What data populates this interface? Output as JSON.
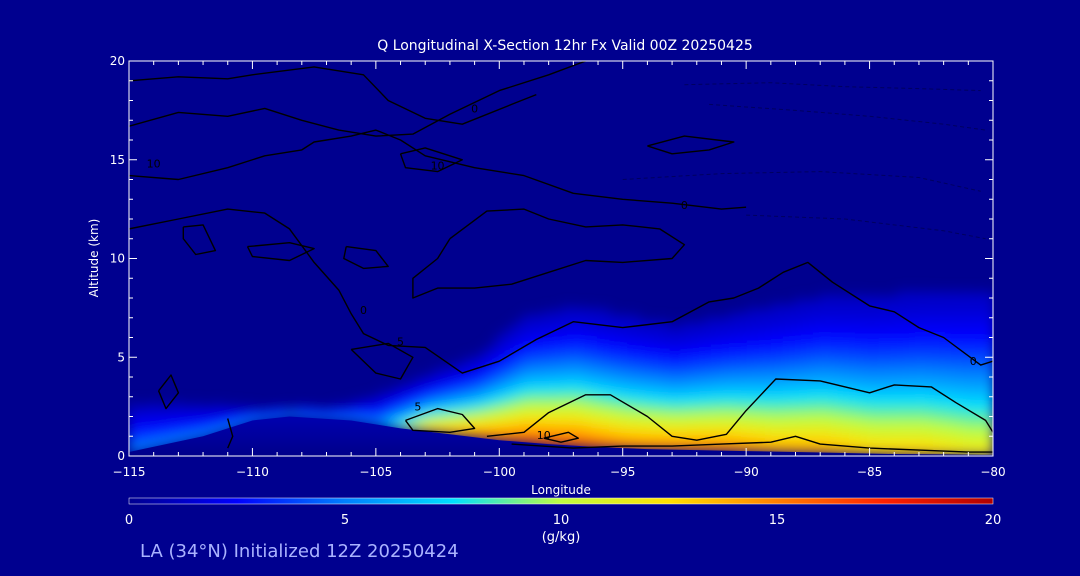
{
  "chart_data": {
    "type": "heatmap",
    "title": "Q Longitudinal X-Section 12hr  Fx Valid 00Z 20250425",
    "xlabel": "Longitude",
    "ylabel": "Altitude (km)",
    "xlim": [
      -115,
      -80
    ],
    "ylim": [
      0,
      20
    ],
    "x_ticks": [
      -115,
      -110,
      -105,
      -100,
      -95,
      -90,
      -85,
      -80
    ],
    "y_ticks": [
      0,
      5,
      10,
      15,
      20
    ],
    "colorbar": {
      "label": "(g/kg)",
      "range": [
        0,
        20
      ],
      "ticks": [
        0,
        5,
        10,
        15,
        20
      ],
      "colors": [
        "#00008f",
        "#0000ff",
        "#0080ff",
        "#00e0ff",
        "#c0ff40",
        "#ffe000",
        "#ff8000",
        "#ff2000",
        "#b00000"
      ]
    },
    "terrain": {
      "lon": [
        -115,
        -112,
        -110,
        -108.5,
        -106,
        -104,
        -102,
        -100,
        -98,
        -96,
        -94,
        -92,
        -90,
        -88,
        -86,
        -84,
        -82,
        -80
      ],
      "alt": [
        0.2,
        1.0,
        1.8,
        2.0,
        1.8,
        1.4,
        1.1,
        0.8,
        0.6,
        0.45,
        0.35,
        0.3,
        0.25,
        0.2,
        0.15,
        0.1,
        0.08,
        0.05
      ]
    },
    "moisture_profile": {
      "lon": [
        -115,
        -113,
        -111,
        -109,
        -107,
        -105,
        -103,
        -101,
        -99,
        -97,
        -95,
        -93,
        -91,
        -89,
        -87,
        -85,
        -83,
        -81,
        -80
      ],
      "q_surface": [
        4,
        4,
        4,
        3.5,
        3.5,
        4,
        12,
        14,
        15,
        15,
        14,
        14,
        14,
        13,
        13,
        12,
        12,
        11,
        11
      ],
      "moist_top_km": [
        2.5,
        2.5,
        2.4,
        2.2,
        2.3,
        3,
        4,
        5,
        7,
        7.5,
        7,
        6.5,
        7,
        7.5,
        8,
        8,
        8.2,
        8.3,
        8.3
      ]
    },
    "contour_labels": [
      {
        "text": "10",
        "lon": -114,
        "alt": 14.6
      },
      {
        "text": "10",
        "lon": -102.5,
        "alt": 14.5
      },
      {
        "text": "10",
        "lon": -98.2,
        "alt": 0.85
      },
      {
        "text": "5",
        "lon": -103.3,
        "alt": 2.3
      },
      {
        "text": "5",
        "lon": -104.0,
        "alt": 5.6
      },
      {
        "text": "0",
        "lon": -105.5,
        "alt": 7.2
      },
      {
        "text": "0",
        "lon": -101.0,
        "alt": 17.4
      },
      {
        "text": "0",
        "lon": -92.5,
        "alt": 12.5
      },
      {
        "text": "0",
        "lon": -80.8,
        "alt": 4.6
      }
    ],
    "contours": [
      [
        [
          -115,
          16.7
        ],
        [
          -113,
          17.4
        ],
        [
          -111,
          17.2
        ],
        [
          -109.5,
          17.6
        ],
        [
          -108,
          17.0
        ],
        [
          -106.5,
          16.5
        ],
        [
          -105,
          16.2
        ],
        [
          -103.5,
          16.3
        ],
        [
          -102,
          17.3
        ],
        [
          -100,
          18.5
        ],
        [
          -98,
          19.3
        ],
        [
          -96.5,
          20
        ]
      ],
      [
        [
          -115,
          19.0
        ],
        [
          -113,
          19.2
        ],
        [
          -111,
          19.1
        ],
        [
          -110,
          19.3
        ],
        [
          -107.5,
          19.7
        ],
        [
          -105.5,
          19.3
        ],
        [
          -104.5,
          18.0
        ],
        [
          -103,
          17.1
        ],
        [
          -101.5,
          16.8
        ],
        [
          -99.5,
          17.8
        ],
        [
          -98.5,
          18.3
        ]
      ],
      [
        [
          -115,
          14.2
        ],
        [
          -113,
          14.0
        ],
        [
          -111,
          14.6
        ],
        [
          -109.5,
          15.2
        ],
        [
          -108,
          15.5
        ],
        [
          -107.5,
          15.9
        ],
        [
          -106,
          16.2
        ],
        [
          -105,
          16.5
        ],
        [
          -104,
          16.0
        ],
        [
          -103,
          15.2
        ],
        [
          -101,
          14.6
        ],
        [
          -99,
          14.2
        ],
        [
          -97,
          13.3
        ],
        [
          -95,
          13.0
        ],
        [
          -93,
          12.8
        ],
        [
          -91,
          12.5
        ],
        [
          -90,
          12.6
        ]
      ],
      [
        [
          -115,
          11.5
        ],
        [
          -113,
          12.0
        ],
        [
          -111,
          12.5
        ],
        [
          -109.5,
          12.3
        ],
        [
          -108.5,
          11.5
        ],
        [
          -107.5,
          9.8
        ],
        [
          -106.5,
          8.4
        ],
        [
          -106,
          7.2
        ],
        [
          -105.5,
          6.2
        ],
        [
          -104.5,
          5.6
        ],
        [
          -103,
          5.5
        ],
        [
          -101.5,
          4.2
        ],
        [
          -100,
          4.8
        ],
        [
          -98.5,
          5.9
        ],
        [
          -97,
          6.8
        ],
        [
          -95,
          6.5
        ],
        [
          -93,
          6.8
        ],
        [
          -91.5,
          7.8
        ],
        [
          -90.5,
          8.0
        ],
        [
          -89.5,
          8.5
        ],
        [
          -88.5,
          9.3
        ],
        [
          -87.5,
          9.8
        ],
        [
          -86.5,
          8.8
        ],
        [
          -85,
          7.6
        ],
        [
          -84,
          7.3
        ],
        [
          -83,
          6.5
        ],
        [
          -82,
          6.0
        ],
        [
          -80.5,
          4.6
        ],
        [
          -80,
          4.8
        ]
      ],
      [
        [
          -102,
          11.0
        ],
        [
          -100.5,
          12.4
        ],
        [
          -99,
          12.5
        ],
        [
          -98,
          12.0
        ],
        [
          -96.5,
          11.6
        ],
        [
          -95,
          11.7
        ],
        [
          -93.5,
          11.5
        ],
        [
          -92.5,
          10.7
        ],
        [
          -93,
          10.0
        ],
        [
          -95,
          9.8
        ],
        [
          -96.5,
          9.9
        ],
        [
          -98,
          9.3
        ],
        [
          -99.5,
          8.7
        ],
        [
          -101,
          8.5
        ],
        [
          -102.5,
          8.5
        ],
        [
          -103.5,
          8.0
        ],
        [
          -103.5,
          9.0
        ],
        [
          -102.5,
          10.0
        ],
        [
          -102,
          11.0
        ]
      ],
      [
        [
          -112.8,
          11.6
        ],
        [
          -112.0,
          11.7
        ],
        [
          -111.5,
          10.4
        ],
        [
          -112.3,
          10.2
        ],
        [
          -112.8,
          11.0
        ],
        [
          -112.8,
          11.6
        ]
      ],
      [
        [
          -110.2,
          10.6
        ],
        [
          -108.5,
          10.8
        ],
        [
          -107.5,
          10.5
        ],
        [
          -108.5,
          9.9
        ],
        [
          -110.0,
          10.1
        ],
        [
          -110.2,
          10.6
        ]
      ],
      [
        [
          -106.2,
          10.6
        ],
        [
          -105.0,
          10.4
        ],
        [
          -104.5,
          9.6
        ],
        [
          -105.5,
          9.5
        ],
        [
          -106.3,
          10.0
        ],
        [
          -106.2,
          10.6
        ]
      ],
      [
        [
          -104,
          15.3
        ],
        [
          -103,
          15.6
        ],
        [
          -101.5,
          15.0
        ],
        [
          -102.5,
          14.4
        ],
        [
          -103.8,
          14.6
        ],
        [
          -104,
          15.3
        ]
      ],
      [
        [
          -94,
          15.7
        ],
        [
          -92.5,
          16.2
        ],
        [
          -90.5,
          15.9
        ],
        [
          -91.5,
          15.5
        ],
        [
          -93,
          15.3
        ],
        [
          -94,
          15.7
        ]
      ],
      [
        [
          -106,
          5.4
        ],
        [
          -104.5,
          5.7
        ],
        [
          -103.5,
          5.0
        ],
        [
          -104.0,
          3.9
        ],
        [
          -105.0,
          4.2
        ],
        [
          -105.5,
          4.8
        ],
        [
          -106,
          5.4
        ]
      ],
      [
        [
          -111,
          1.9
        ],
        [
          -110.8,
          1.0
        ],
        [
          -111,
          0.4
        ]
      ],
      [
        [
          -113.8,
          3.3
        ],
        [
          -113.3,
          4.1
        ],
        [
          -113.0,
          3.2
        ],
        [
          -113.5,
          2.4
        ],
        [
          -113.8,
          3.3
        ]
      ],
      [
        [
          -103.8,
          1.8
        ],
        [
          -102.5,
          2.4
        ],
        [
          -101.5,
          2.1
        ],
        [
          -101.0,
          1.4
        ],
        [
          -102,
          1.2
        ],
        [
          -103.5,
          1.3
        ],
        [
          -103.8,
          1.8
        ]
      ],
      [
        [
          -100.5,
          1.0
        ],
        [
          -99.0,
          1.2
        ],
        [
          -98.0,
          2.2
        ],
        [
          -96.5,
          3.1
        ],
        [
          -95.5,
          3.1
        ],
        [
          -94,
          2.0
        ],
        [
          -93.0,
          1.0
        ],
        [
          -92.0,
          0.8
        ],
        [
          -90.8,
          1.1
        ],
        [
          -90.0,
          2.3
        ],
        [
          -88.8,
          3.9
        ],
        [
          -87,
          3.8
        ],
        [
          -85,
          3.2
        ],
        [
          -84,
          3.6
        ],
        [
          -82.5,
          3.5
        ],
        [
          -81.5,
          2.7
        ],
        [
          -80.3,
          1.8
        ],
        [
          -80,
          1.2
        ]
      ],
      [
        [
          -98.2,
          0.9
        ],
        [
          -97.2,
          1.2
        ],
        [
          -96.8,
          0.9
        ],
        [
          -97.5,
          0.7
        ],
        [
          -98.2,
          0.9
        ]
      ],
      [
        [
          -99.5,
          0.6
        ],
        [
          -97,
          0.4
        ],
        [
          -95,
          0.5
        ],
        [
          -93,
          0.5
        ],
        [
          -91,
          0.6
        ],
        [
          -89,
          0.7
        ],
        [
          -88,
          1.0
        ],
        [
          -87,
          0.6
        ],
        [
          -85,
          0.4
        ],
        [
          -83,
          0.3
        ],
        [
          -81,
          0.2
        ],
        [
          -80,
          0.2
        ]
      ]
    ],
    "dashed_contours": [
      [
        [
          -92.5,
          18.8
        ],
        [
          -89,
          18.9
        ],
        [
          -86,
          18.7
        ],
        [
          -83,
          18.6
        ],
        [
          -80.5,
          18.5
        ]
      ],
      [
        [
          -91.5,
          17.8
        ],
        [
          -88,
          17.5
        ],
        [
          -85,
          17.2
        ],
        [
          -82,
          16.8
        ],
        [
          -80.3,
          16.5
        ]
      ],
      [
        [
          -95,
          14.0
        ],
        [
          -91,
          14.3
        ],
        [
          -87,
          14.4
        ],
        [
          -83,
          14.1
        ],
        [
          -80.5,
          13.4
        ]
      ],
      [
        [
          -90,
          12.2
        ],
        [
          -86,
          12.0
        ],
        [
          -82,
          11.4
        ],
        [
          -80.3,
          11.0
        ]
      ]
    ]
  },
  "footer": "LA (34°N) Initialized 12Z 20250424"
}
